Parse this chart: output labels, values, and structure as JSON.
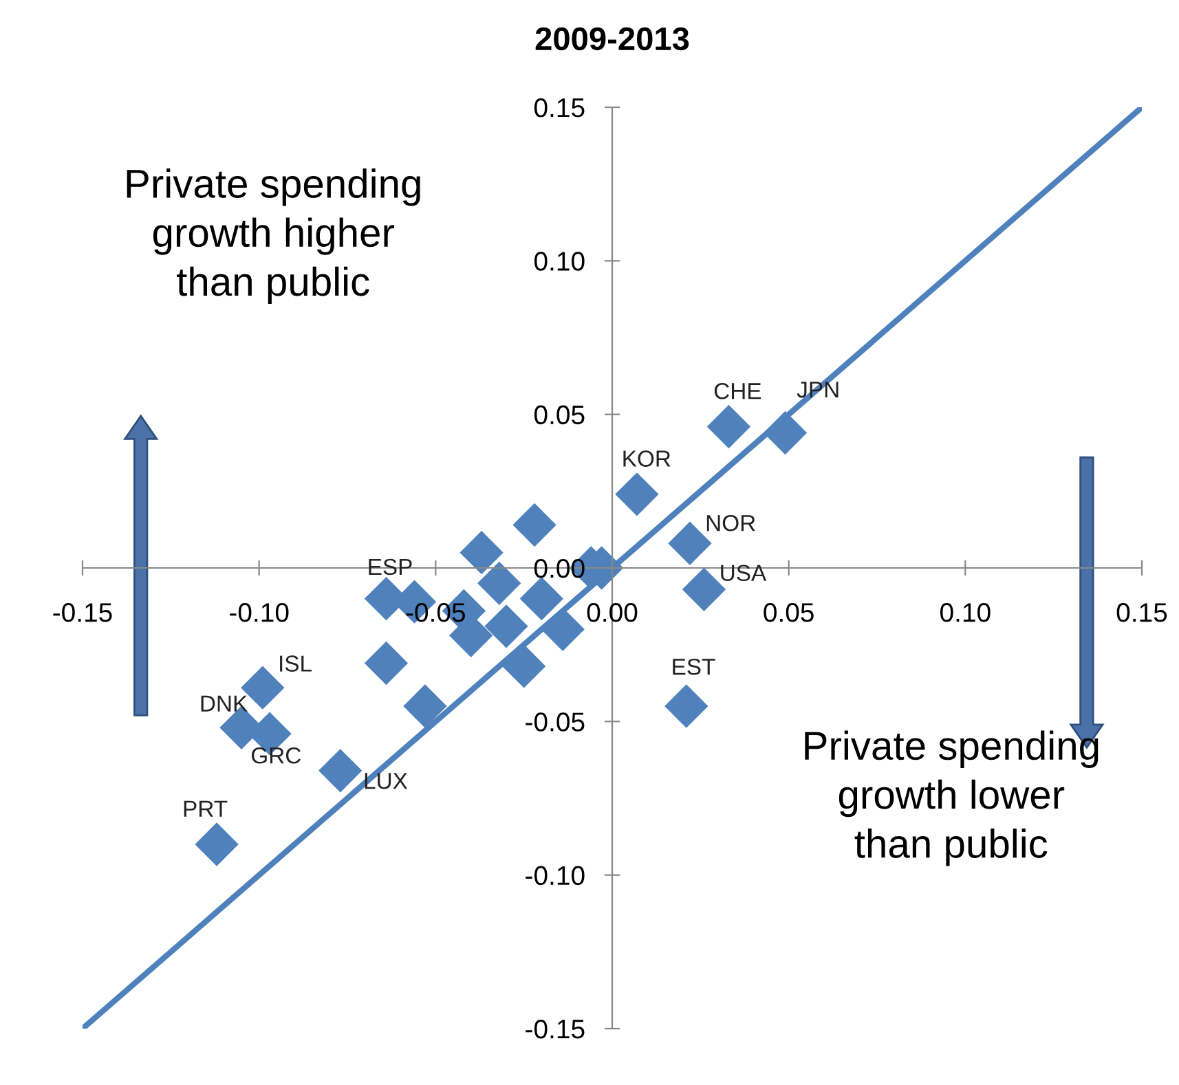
{
  "chart_data": {
    "type": "scatter",
    "title": "2009-2013",
    "grid": false,
    "xlim": [
      -0.15,
      0.15
    ],
    "ylim": [
      -0.15,
      0.15
    ],
    "xticks": [
      {
        "value": -0.15,
        "label": "-0.15"
      },
      {
        "value": -0.1,
        "label": "-0.10"
      },
      {
        "value": -0.05,
        "label": "-0.05"
      },
      {
        "value": 0,
        "label": "0.00"
      },
      {
        "value": 0.05,
        "label": "0.05"
      },
      {
        "value": 0.1,
        "label": "0.10"
      },
      {
        "value": 0.15,
        "label": "0.15"
      }
    ],
    "yticks": [
      {
        "value": -0.15,
        "label": "-0.15"
      },
      {
        "value": -0.1,
        "label": "-0.10"
      },
      {
        "value": -0.05,
        "label": "-0.05"
      },
      {
        "value": 0,
        "label": "0.00"
      },
      {
        "value": 0.05,
        "label": "0.05"
      },
      {
        "value": 0.1,
        "label": "0.10"
      },
      {
        "value": 0.15,
        "label": "0.15"
      }
    ],
    "series": [
      {
        "marker": "diamond",
        "color": "#4f81bd",
        "x": [
          0.007,
          0.022,
          0.026,
          0.021,
          -0.022,
          -0.037,
          -0.032,
          -0.02,
          -0.006,
          -0.003,
          -0.064,
          -0.056,
          -0.042,
          -0.04,
          -0.03,
          -0.014,
          -0.025,
          -0.064,
          -0.053,
          -0.077,
          -0.099,
          -0.105,
          -0.097,
          -0.112,
          0.033,
          0.049
        ],
        "values": [
          0.024,
          0.008,
          -0.007,
          -0.045,
          0.014,
          0.005,
          -0.005,
          -0.01,
          0.0,
          0.0,
          -0.01,
          -0.011,
          -0.014,
          -0.022,
          -0.019,
          -0.02,
          -0.032,
          -0.031,
          -0.045,
          -0.066,
          -0.039,
          -0.052,
          -0.054,
          -0.09,
          0.046,
          0.044
        ]
      },
      {
        "type": "line",
        "marker": "none",
        "color": "#4f81bd",
        "x": [
          -0.15,
          0.15
        ],
        "values": [
          -0.15,
          0.15
        ]
      }
    ],
    "annotations": [
      {
        "text": "KOR",
        "x": 0.007,
        "y": 0.024
      },
      {
        "text": "NOR",
        "x": 0.022,
        "y": 0.008
      },
      {
        "text": "USA",
        "x": 0.026,
        "y": -0.007
      },
      {
        "text": "EST",
        "x": 0.021,
        "y": -0.045
      },
      {
        "text": "ESP",
        "x": -0.064,
        "y": -0.01
      },
      {
        "text": "LUX",
        "x": -0.077,
        "y": -0.066
      },
      {
        "text": "ISL",
        "x": -0.099,
        "y": -0.039
      },
      {
        "text": "DNK",
        "x": -0.105,
        "y": -0.052
      },
      {
        "text": "GRC",
        "x": -0.097,
        "y": -0.054
      },
      {
        "text": "PRT",
        "x": -0.112,
        "y": -0.09
      },
      {
        "text": "CHE",
        "x": 0.033,
        "y": 0.046
      },
      {
        "text": "JPN",
        "x": 0.049,
        "y": 0.044
      },
      "Private spending\ngrowth higher\nthan public",
      "Private spending\ngrowth lower\nthan public"
    ]
  }
}
